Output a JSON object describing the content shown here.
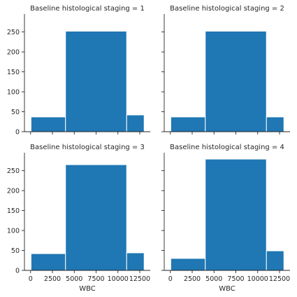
{
  "chart_data": {
    "type": "bar",
    "layout": "facet-grid-2x2",
    "xlabel": "WBC",
    "ylabel": "",
    "xlim": [
      -700,
      13700
    ],
    "ylim": [
      0,
      295
    ],
    "xticks": [
      0,
      2500,
      5000,
      7500,
      10000,
      12500
    ],
    "yticks": [
      0,
      50,
      100,
      150,
      200,
      250
    ],
    "bins": [
      [
        50,
        4000
      ],
      [
        4000,
        11000
      ],
      [
        11000,
        13000
      ]
    ],
    "bar_color": "#1f77b4",
    "grid": false,
    "facets": [
      {
        "title": "Baseline histological staging = 1",
        "values": [
          37,
          252,
          42
        ]
      },
      {
        "title": "Baseline histological staging = 2",
        "values": [
          37,
          252,
          37
        ]
      },
      {
        "title": "Baseline histological staging = 3",
        "values": [
          42,
          265,
          44
        ]
      },
      {
        "title": "Baseline histological staging = 4",
        "values": [
          30,
          279,
          49
        ]
      }
    ]
  }
}
